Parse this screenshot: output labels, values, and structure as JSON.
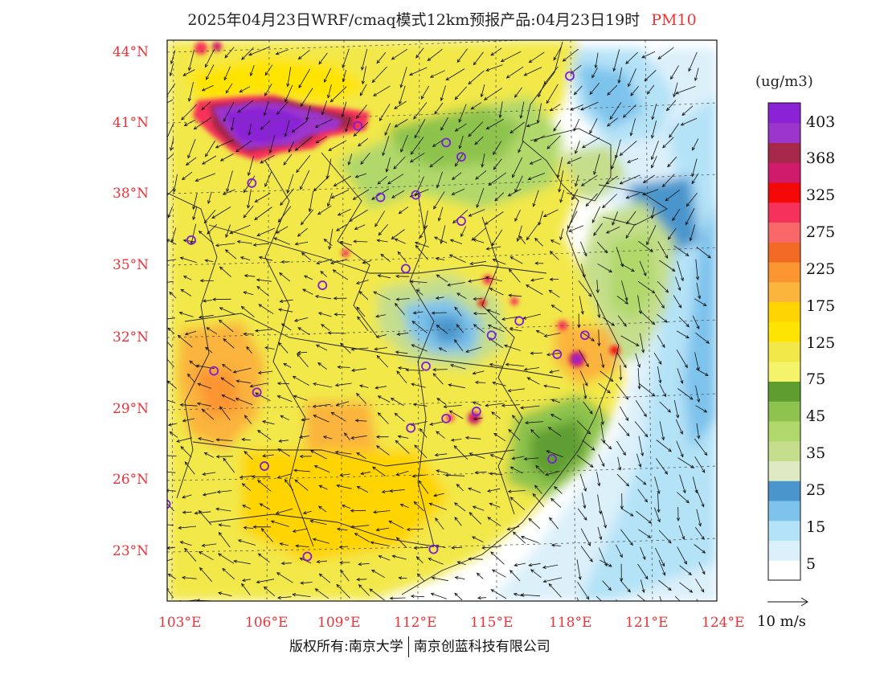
{
  "title": {
    "main": "2025年04月23日WRF/cmaq模式12km预报产品:04月23日19时",
    "product": "PM10"
  },
  "latitude_labels": [
    "44°N",
    "41°N",
    "38°N",
    "35°N",
    "32°N",
    "29°N",
    "26°N",
    "23°N"
  ],
  "longitude_labels": [
    "103°E",
    "106°E",
    "109°E",
    "112°E",
    "115°E",
    "118°E",
    "121°E",
    "124°E"
  ],
  "colorbar": {
    "unit": "(ug/m3)",
    "colors": [
      "#ffffff",
      "#dcf0fa",
      "#b4e2f7",
      "#7ec3ec",
      "#4a95cc",
      "#dfeac2",
      "#c4de8c",
      "#b0d86a",
      "#8dc34e",
      "#5e9e30",
      "#f5f36a",
      "#f2e84a",
      "#ffe400",
      "#ffd400",
      "#fbb43c",
      "#fb9530",
      "#f26a24",
      "#f86868",
      "#f7325a",
      "#f50808",
      "#d01a6b",
      "#a6284a",
      "#9c35cc",
      "#8a22d6"
    ],
    "labels": [
      "5",
      "15",
      "25",
      "35",
      "45",
      "75",
      "125",
      "175",
      "225",
      "275",
      "325",
      "368",
      "403"
    ]
  },
  "wind_reference": {
    "label": "10 m/s"
  },
  "stations": [
    [
      118.7,
      43.0
    ],
    [
      110.3,
      40.9
    ],
    [
      113.8,
      40.2
    ],
    [
      114.4,
      39.6
    ],
    [
      106.1,
      38.5
    ],
    [
      111.2,
      37.9
    ],
    [
      112.6,
      38.0
    ],
    [
      114.4,
      36.9
    ],
    [
      103.7,
      36.1
    ],
    [
      112.2,
      34.9
    ],
    [
      108.9,
      34.2
    ],
    [
      115.6,
      32.1
    ],
    [
      116.7,
      32.7
    ],
    [
      119.3,
      32.1
    ],
    [
      118.2,
      31.3
    ],
    [
      104.6,
      30.6
    ],
    [
      106.3,
      29.7
    ],
    [
      113.0,
      30.8
    ],
    [
      115.0,
      28.9
    ],
    [
      112.4,
      28.2
    ],
    [
      113.8,
      28.6
    ],
    [
      106.6,
      26.6
    ],
    [
      118.0,
      26.9
    ],
    [
      102.7,
      25.0
    ],
    [
      108.3,
      22.8
    ],
    [
      113.3,
      23.1
    ]
  ],
  "copyright": {
    "left": "版权所有:南京大学",
    "right": "南京创蓝科技有限公司"
  }
}
